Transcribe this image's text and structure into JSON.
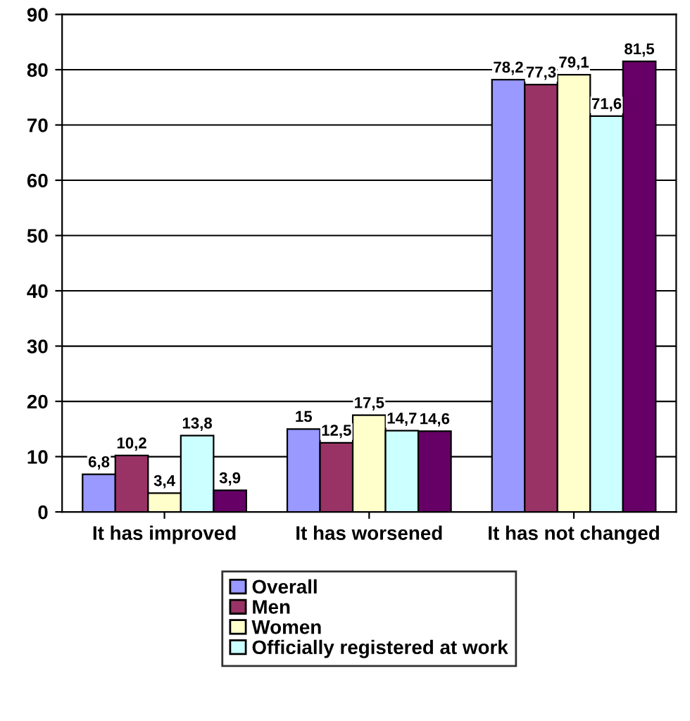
{
  "chart_data": {
    "type": "bar",
    "categories": [
      "It has improved",
      "It has worsened",
      "It has not changed"
    ],
    "series": [
      {
        "name": "Overall",
        "color": "#9999ff",
        "values": [
          6.8,
          15,
          78.2
        ],
        "value_labels": [
          "6,8",
          "15",
          "78,2"
        ]
      },
      {
        "name": "Men",
        "color": "#993366",
        "values": [
          10.2,
          12.5,
          77.3
        ],
        "value_labels": [
          "10,2",
          "12,5",
          "77,3"
        ]
      },
      {
        "name": "Women",
        "color": "#ffffcc",
        "values": [
          3.4,
          17.5,
          79.1
        ],
        "value_labels": [
          "3,4",
          "17,5",
          "79,1"
        ]
      },
      {
        "name": "Officially registered at work",
        "color": "#ccffff",
        "values": [
          13.8,
          14.7,
          71.6
        ],
        "value_labels": [
          "13,8",
          "14,7",
          "71,6"
        ]
      },
      {
        "color": "#660066",
        "values": [
          3.9,
          14.6,
          81.5
        ],
        "value_labels": [
          "3,9",
          "14,6",
          "81,5"
        ]
      }
    ],
    "ylim": [
      0,
      90
    ],
    "yticks": [
      0,
      10,
      20,
      30,
      40,
      50,
      60,
      70,
      80,
      90
    ],
    "grid": "y",
    "legend": "bottom"
  }
}
